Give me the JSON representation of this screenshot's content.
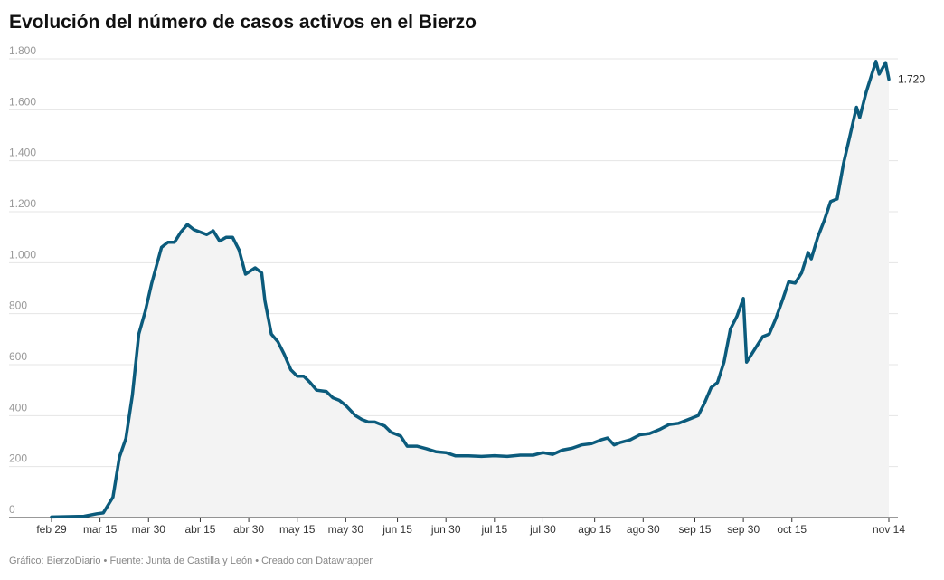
{
  "chart_data": {
    "type": "line",
    "title": "Evolución del número de casos activos en el Bierzo",
    "source": "Gráfico: BierzoDiario • Fuente: Junta de Castilla y León • Creado con Datawrapper",
    "x": [
      "feb 29",
      "mar 10",
      "mar 14",
      "mar 16",
      "mar 19",
      "mar 21",
      "mar 23",
      "mar 25",
      "mar 27",
      "mar 29",
      "mar 31",
      "apr 3",
      "apr 5",
      "apr 7",
      "apr 9",
      "apr 11",
      "apr 13",
      "apr 15",
      "apr 17",
      "apr 19",
      "apr 21",
      "apr 23",
      "apr 25",
      "apr 27",
      "apr 29",
      "may 2",
      "may 4",
      "may 5",
      "may 7",
      "may 9",
      "may 11",
      "may 13",
      "may 15",
      "may 17",
      "may 19",
      "may 21",
      "may 24",
      "may 26",
      "may 28",
      "may 30",
      "jun 2",
      "jun 4",
      "jun 6",
      "jun 8",
      "jun 11",
      "jun 13",
      "jun 16",
      "jun 18",
      "jun 21",
      "jun 24",
      "jun 27",
      "jun 30",
      "jul 3",
      "jul 7",
      "jul 11",
      "jul 15",
      "jul 19",
      "jul 23",
      "jul 27",
      "jul 30",
      "aug 2",
      "aug 5",
      "aug 8",
      "aug 11",
      "aug 14",
      "aug 17",
      "aug 19",
      "aug 21",
      "aug 23",
      "aug 26",
      "aug 29",
      "sep 1",
      "sep 4",
      "sep 7",
      "sep 10",
      "sep 13",
      "sep 16",
      "sep 18",
      "sep 20",
      "sep 22",
      "sep 24",
      "sep 26",
      "sep 28",
      "sep 30",
      "oct 1",
      "oct 3",
      "oct 6",
      "oct 8",
      "oct 10",
      "oct 12",
      "oct 14",
      "oct 16",
      "oct 18",
      "oct 20",
      "oct 21",
      "oct 23",
      "oct 25",
      "oct 27",
      "oct 29",
      "oct 31",
      "nov 2",
      "nov 4",
      "nov 5",
      "nov 7",
      "nov 9",
      "nov 10",
      "nov 11",
      "nov 13",
      "nov 14"
    ],
    "series": [
      {
        "name": "Casos activos",
        "color": "#0b5b7c",
        "values": [
          2,
          5,
          15,
          18,
          80,
          238,
          310,
          480,
          720,
          810,
          920,
          1060,
          1080,
          1080,
          1120,
          1150,
          1130,
          1120,
          1110,
          1125,
          1085,
          1100,
          1100,
          1050,
          955,
          980,
          960,
          850,
          720,
          690,
          640,
          580,
          555,
          555,
          530,
          500,
          495,
          470,
          460,
          440,
          400,
          385,
          375,
          375,
          360,
          335,
          320,
          280,
          280,
          270,
          258,
          255,
          242,
          242,
          240,
          243,
          240,
          245,
          245,
          255,
          248,
          265,
          272,
          285,
          290,
          305,
          312,
          285,
          295,
          305,
          325,
          330,
          345,
          365,
          370,
          385,
          400,
          450,
          510,
          530,
          610,
          740,
          790,
          860,
          610,
          650,
          710,
          720,
          780,
          850,
          925,
          920,
          960,
          1040,
          1015,
          1100,
          1165,
          1240,
          1250,
          1390,
          1500,
          1610,
          1570,
          1670,
          1750,
          1790,
          1740,
          1785,
          1720
        ],
        "value_labels": [
          null,
          null,
          null,
          null,
          null,
          null,
          null,
          null,
          null,
          null,
          null,
          null,
          null,
          null,
          null,
          null,
          null,
          null,
          null,
          null,
          null,
          null,
          null,
          null,
          null,
          null,
          null,
          null,
          null,
          null,
          null,
          null,
          null,
          null,
          null,
          null,
          null,
          null,
          null,
          null,
          null,
          null,
          null,
          null,
          null,
          null,
          null,
          null,
          null,
          null,
          null,
          null,
          null,
          null,
          null,
          null,
          null,
          null,
          null,
          null,
          null,
          null,
          null,
          null,
          null,
          null,
          null,
          null,
          null,
          null,
          null,
          null,
          null,
          null,
          null,
          null,
          null,
          null,
          null,
          null,
          null,
          null,
          null,
          null,
          null,
          null,
          null,
          null,
          null,
          null,
          null,
          null,
          null,
          null,
          null,
          null,
          null,
          null,
          null,
          null,
          null,
          null,
          null,
          null,
          null,
          null,
          null,
          null,
          "1.720"
        ]
      }
    ],
    "xlim": [
      "feb 29",
      "nov 14"
    ],
    "xticks": [
      "feb 29",
      "mar 15",
      "mar 30",
      "abr 15",
      "abr 30",
      "may 15",
      "may 30",
      "jun 15",
      "jun 30",
      "jul 15",
      "jul 30",
      "ago 15",
      "ago 30",
      "sep 15",
      "sep 30",
      "oct 15",
      "nov 14"
    ],
    "ylim": [
      0,
      1800
    ],
    "yticks": [
      0,
      200,
      400,
      600,
      800,
      {
        "value": 1000,
        "label": "1.000"
      },
      {
        "value": 1200,
        "label": "1.200"
      },
      {
        "value": 1400,
        "label": "1.400"
      },
      {
        "value": 1600,
        "label": "1.600"
      },
      {
        "value": 1800,
        "label": "1.800"
      }
    ],
    "grid": true,
    "area": true
  }
}
